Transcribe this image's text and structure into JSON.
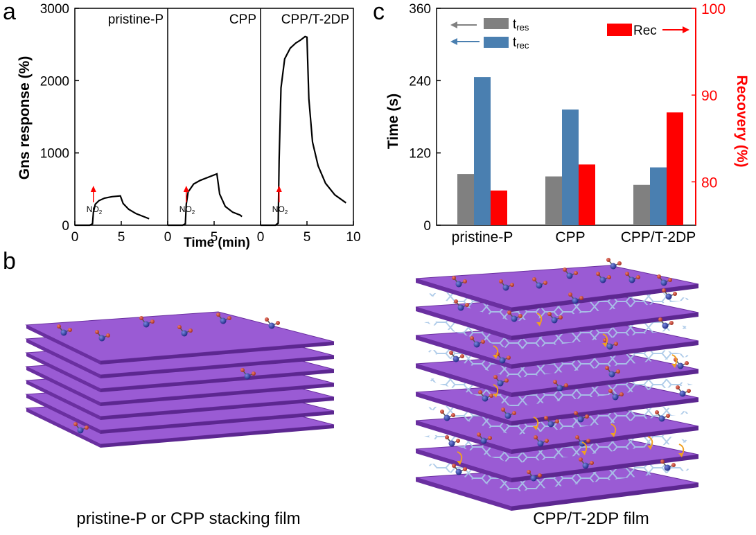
{
  "panels": {
    "a": {
      "letter": "a"
    },
    "b": {
      "letter": "b"
    },
    "c": {
      "letter": "c"
    }
  },
  "chart_data": [
    {
      "type": "line",
      "panel": "a",
      "ylabel": "Gns response (%)",
      "xlabel": "Time (min)",
      "ylim": [
        0,
        3000
      ],
      "yticks": [
        0,
        1000,
        2000,
        3000
      ],
      "xlim": [
        0,
        10
      ],
      "xtick_labels": [
        "0",
        "5",
        "0",
        "5",
        "0",
        "5",
        "10"
      ],
      "gas_marker": {
        "text": "NO",
        "subscript": "2",
        "x": 2.0,
        "color": "#ff0000"
      },
      "series": [
        {
          "name": "pristine-P",
          "x": [
            0,
            1.6,
            1.9,
            2.0,
            2.2,
            2.6,
            3.2,
            4.0,
            4.9,
            5.2,
            5.8,
            6.6,
            7.4,
            8.0
          ],
          "y": [
            0,
            0,
            20,
            180,
            290,
            340,
            375,
            395,
            405,
            300,
            220,
            160,
            120,
            90
          ]
        },
        {
          "name": "CPP",
          "x": [
            0,
            1.6,
            1.9,
            2.0,
            2.2,
            2.8,
            3.5,
            4.3,
            5.3,
            5.6,
            6.2,
            7.0,
            7.8,
            8.0
          ],
          "y": [
            0,
            0,
            20,
            290,
            460,
            570,
            620,
            660,
            710,
            430,
            260,
            180,
            140,
            120
          ]
        },
        {
          "name": "CPP/T-2DP",
          "x": [
            0,
            1.6,
            1.9,
            2.0,
            2.2,
            2.6,
            3.2,
            3.8,
            4.3,
            4.8,
            5.0,
            5.2,
            5.6,
            6.2,
            7.0,
            8.0,
            9.2
          ],
          "y": [
            0,
            0,
            30,
            900,
            1900,
            2300,
            2450,
            2520,
            2560,
            2610,
            2600,
            1750,
            1150,
            820,
            580,
            420,
            310
          ]
        }
      ]
    },
    {
      "type": "bar",
      "panel": "c",
      "categories": [
        "pristine-P",
        "CPP",
        "CPP/T-2DP"
      ],
      "ylabel": "Time (s)",
      "ylim": [
        0,
        360
      ],
      "yticks": [
        0,
        120,
        240,
        360
      ],
      "y2label": "Recovery (%)",
      "y2lim": [
        75,
        100
      ],
      "y2ticks": [
        80,
        90,
        100
      ],
      "series": [
        {
          "name": "t",
          "sub": "res",
          "axis": "left",
          "color": "#808080",
          "values": [
            85,
            81,
            67
          ]
        },
        {
          "name": "t",
          "sub": "rec",
          "axis": "left",
          "color": "#4a7fb0",
          "values": [
            246,
            192,
            96
          ]
        },
        {
          "name": "Rec",
          "axis": "right",
          "color": "#ff0000",
          "values": [
            79.0,
            82.0,
            88.0
          ]
        }
      ],
      "legend_placement": "top"
    }
  ],
  "illustrations": [
    {
      "caption": "pristine-P or CPP stacking film",
      "layer_color": "#8a47c4"
    },
    {
      "caption": "CPP/T-2DP film",
      "layer_color": "#8a47c4",
      "framework_color": "#a9c8e8",
      "arrow_color": "#f0a020"
    }
  ],
  "molecule_colors": {
    "nitrogen": "#2a3aa0",
    "oxygen": "#c0392b"
  }
}
